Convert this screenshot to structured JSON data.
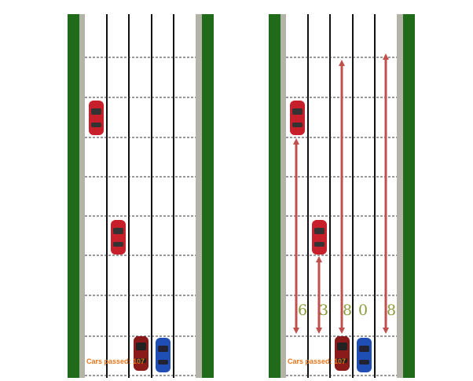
{
  "colors": {
    "grass": "#1f6b1a",
    "grass_dark": "#124a10",
    "shoulder": "#b3b3a8",
    "road": "#ffffff",
    "lane_line": "#111111",
    "dashed_line": "#333333",
    "arrow": "#c0504d",
    "counter_text": "#e8751a",
    "distance_text": "#8a9a3a",
    "red_car": "#c8202a",
    "blue_car": "#1f4fb5",
    "dark_red_car": "#8b1a1a"
  },
  "left_panel": {
    "counter_label": "Cars passed:",
    "counter_value": "107",
    "cars": [
      {
        "color": "red",
        "lane": 1,
        "row": 2
      },
      {
        "color": "red",
        "lane": 2,
        "row": 5
      },
      {
        "color": "dark-red",
        "lane": 3,
        "row": 8
      },
      {
        "color": "blue",
        "lane": 4,
        "row": 8
      }
    ]
  },
  "right_panel": {
    "counter_label": "Cars passed:",
    "counter_value": "107",
    "cars": [
      {
        "color": "red",
        "lane": 1,
        "row": 2
      },
      {
        "color": "red",
        "lane": 2,
        "row": 5
      },
      {
        "color": "dark-red",
        "lane": 3,
        "row": 8
      },
      {
        "color": "blue",
        "lane": 4,
        "row": 8
      }
    ],
    "lane_distances": [
      "6",
      "3",
      "8",
      "0",
      "8"
    ]
  }
}
